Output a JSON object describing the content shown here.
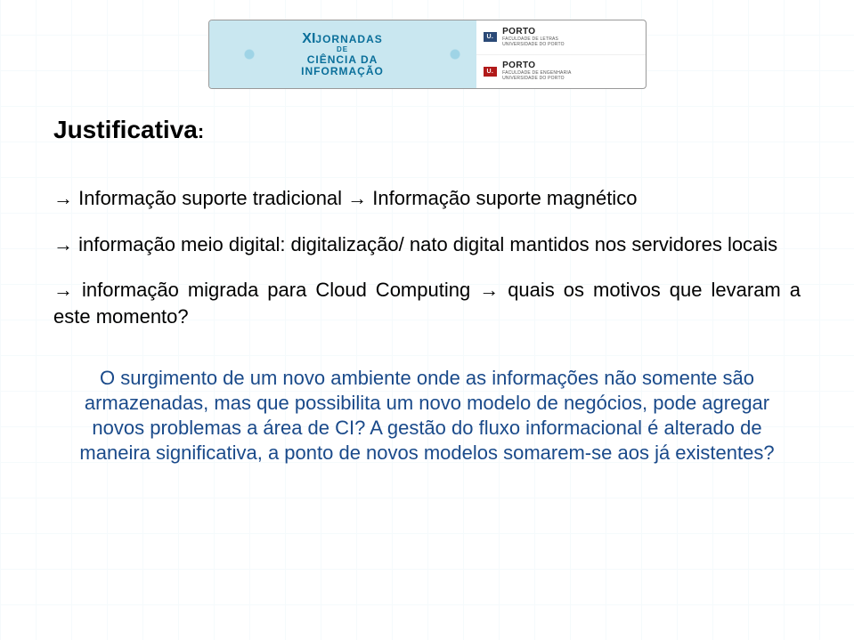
{
  "colors": {
    "page_bg": "#ffffff",
    "banner_bg": "#c9e7f0",
    "banner_text": "#0a6f9a",
    "logo_blue": "#2b4a77",
    "logo_red": "#b11a1a",
    "title_color": "#000000",
    "body_color": "#000000",
    "callout_color": "#1a4a8a"
  },
  "typography": {
    "title_fontsize_pt": 21,
    "body_fontsize_pt": 17,
    "callout_fontsize_pt": 17,
    "banner_main_fontsize_pt": 9,
    "logo_brand_fontsize_pt": 8
  },
  "header": {
    "banner": {
      "line1_prefix": "XI",
      "line1": "JORNADAS",
      "line2": "DE",
      "line3": "CIÊNCIA DA",
      "line4": "INFORMAÇÃO"
    },
    "logos": [
      {
        "badge_text": "U.",
        "brand": "PORTO",
        "sub1": "FACULDADE DE LETRAS",
        "sub2": "UNIVERSIDADE DO PORTO",
        "badge_color": "#2b4a77"
      },
      {
        "badge_text": "U.",
        "brand": "PORTO",
        "sub1": "FACULDADE DE ENGENHARIA",
        "sub2": "UNIVERSIDADE DO PORTO",
        "badge_color": "#b11a1a"
      }
    ]
  },
  "content": {
    "title": "Justificativa",
    "title_suffix": ":",
    "paragraphs": [
      "→  Informação suporte tradicional → Informação suporte magnético",
      "→ informação meio digital: digitalização/ nato digital mantidos nos servidores locais",
      "→ informação migrada para Cloud Computing → quais os motivos que levaram a este momento?"
    ],
    "callout": "O surgimento de um novo ambiente onde as informações não somente são armazenadas, mas que possibilita um novo modelo de negócios, pode agregar novos problemas a área de CI? A gestão do fluxo informacional é alterado de maneira significativa, a ponto de novos modelos somarem-se aos já existentes?"
  }
}
